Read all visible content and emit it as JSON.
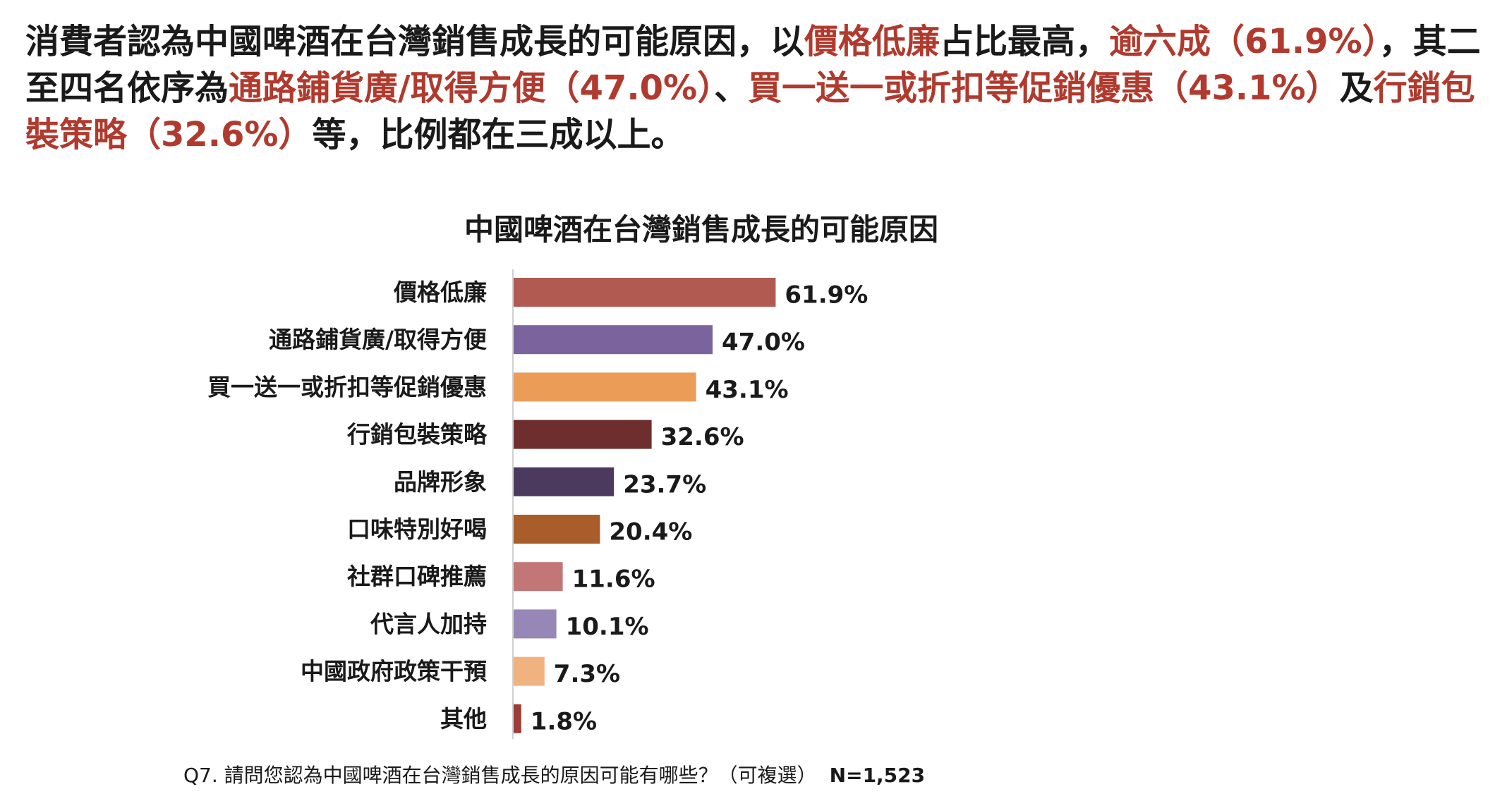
{
  "summary": {
    "segments": [
      {
        "text": "消費者認為中國啤酒在台灣銷售成長的可能原因，以",
        "hl": false
      },
      {
        "text": "價格低廉",
        "hl": true
      },
      {
        "text": "占比最高，",
        "hl": false
      },
      {
        "text": "逾六成（61.9%）",
        "hl": true
      },
      {
        "text": "，其二至四名依序為",
        "hl": false
      },
      {
        "text": "通路鋪貨廣/取得方便（47.0%）",
        "hl": true
      },
      {
        "text": "、",
        "hl": false
      },
      {
        "text": "買一送一或折扣等促銷優惠（43.1%）",
        "hl": true
      },
      {
        "text": "及",
        "hl": false
      },
      {
        "text": "行銷包裝策略（32.6%）",
        "hl": true
      },
      {
        "text": "等，比例都在三成以上。",
        "hl": false
      }
    ]
  },
  "chart_data": {
    "type": "bar",
    "orientation": "horizontal",
    "title": "中國啤酒在台灣銷售成長的可能原因",
    "categories": [
      "價格低廉",
      "通路鋪貨廣/取得方便",
      "買一送一或折扣等促銷優惠",
      "行銷包裝策略",
      "品牌形象",
      "口味特別好喝",
      "社群口碑推薦",
      "代言人加持",
      "中國政府政策干預",
      "其他"
    ],
    "values": [
      61.9,
      47.0,
      43.1,
      32.6,
      23.7,
      20.4,
      11.6,
      10.1,
      7.3,
      1.8
    ],
    "value_labels": [
      "61.9%",
      "47.0%",
      "43.1%",
      "32.6%",
      "23.7%",
      "20.4%",
      "11.6%",
      "10.1%",
      "7.3%",
      "1.8%"
    ],
    "colors": [
      "#b05a52",
      "#7b649e",
      "#eb9c57",
      "#6e2e2e",
      "#4b3a5e",
      "#a85d2a",
      "#c27676",
      "#9687b6",
      "#f0b27f",
      "#9b3c38"
    ],
    "xlim": [
      0,
      100
    ],
    "grid": false,
    "legend": "none",
    "xlabel": "",
    "ylabel": ""
  },
  "footnote": {
    "question": "Q7. 請問您認為中國啤酒在台灣銷售成長的原因可能有哪些？（可複選）",
    "n": "N=1,523"
  }
}
